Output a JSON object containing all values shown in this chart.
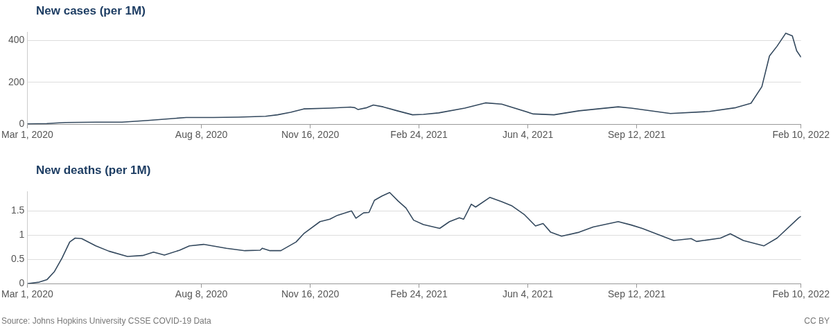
{
  "chart_data": [
    {
      "type": "line",
      "title": "New cases (per 1M)",
      "marker": "none",
      "grid": "y",
      "legend": false,
      "xlim": [
        "2020-03-01",
        "2022-02-10"
      ],
      "xticks": [
        {
          "value": "2020-03-01",
          "label": "Mar 1, 2020"
        },
        {
          "value": "2020-08-08",
          "label": "Aug 8, 2020"
        },
        {
          "value": "2020-11-16",
          "label": "Nov 16, 2020"
        },
        {
          "value": "2021-02-24",
          "label": "Feb 24, 2021"
        },
        {
          "value": "2021-06-04",
          "label": "Jun 4, 2021"
        },
        {
          "value": "2021-09-12",
          "label": "Sep 12, 2021"
        },
        {
          "value": "2022-02-10",
          "label": "Feb 10, 2022"
        }
      ],
      "ylim": [
        0,
        440
      ],
      "yticks": [
        0,
        200,
        400
      ],
      "x": [
        "2020-03-01",
        "2020-03-19",
        "2020-04-05",
        "2020-05-03",
        "2020-05-27",
        "2020-06-20",
        "2020-07-25",
        "2020-08-19",
        "2020-09-11",
        "2020-10-06",
        "2020-10-17",
        "2020-10-29",
        "2020-11-10",
        "2020-12-04",
        "2020-12-23",
        "2020-12-27",
        "2020-12-30",
        "2021-01-07",
        "2021-01-13",
        "2021-01-22",
        "2021-02-04",
        "2021-02-18",
        "2021-02-28",
        "2021-03-14",
        "2021-04-07",
        "2021-04-26",
        "2021-05-11",
        "2021-06-09",
        "2021-06-28",
        "2021-07-21",
        "2021-08-26",
        "2021-09-07",
        "2021-10-13",
        "2021-11-18",
        "2021-12-12",
        "2021-12-26",
        "2022-01-05",
        "2022-01-12",
        "2022-01-19",
        "2022-01-27",
        "2022-02-02",
        "2022-02-06",
        "2022-02-10"
      ],
      "series": [
        {
          "color": "#34495e",
          "values": [
            1,
            3,
            8,
            10,
            10,
            18,
            32,
            32,
            34,
            38,
            45,
            57,
            73,
            77,
            82,
            79,
            70,
            79,
            92,
            83,
            64,
            45,
            47,
            54,
            77,
            102,
            96,
            49,
            45,
            64,
            83,
            77,
            51,
            61,
            79,
            100,
            179,
            326,
            373,
            435,
            422,
            351,
            320
          ]
        }
      ]
    },
    {
      "type": "line",
      "title": "New deaths (per 1M)",
      "marker": "none",
      "grid": "y",
      "legend": false,
      "xlim": [
        "2020-03-01",
        "2022-02-10"
      ],
      "xticks": [
        {
          "value": "2020-03-01",
          "label": "Mar 1, 2020"
        },
        {
          "value": "2020-08-08",
          "label": "Aug 8, 2020"
        },
        {
          "value": "2020-11-16",
          "label": "Nov 16, 2020"
        },
        {
          "value": "2021-02-24",
          "label": "Feb 24, 2021"
        },
        {
          "value": "2021-06-04",
          "label": "Jun 4, 2021"
        },
        {
          "value": "2021-09-12",
          "label": "Sep 12, 2021"
        },
        {
          "value": "2022-02-10",
          "label": "Feb 10, 2022"
        }
      ],
      "ylim": [
        0,
        1.9
      ],
      "yticks": [
        0,
        0.5,
        1,
        1.5
      ],
      "x": [
        "2020-03-01",
        "2020-03-12",
        "2020-03-19",
        "2020-03-26",
        "2020-04-02",
        "2020-04-09",
        "2020-04-14",
        "2020-04-20",
        "2020-05-03",
        "2020-05-15",
        "2020-06-01",
        "2020-06-15",
        "2020-06-25",
        "2020-07-05",
        "2020-07-19",
        "2020-07-28",
        "2020-08-10",
        "2020-08-31",
        "2020-09-17",
        "2020-10-01",
        "2020-10-03",
        "2020-10-10",
        "2020-10-20",
        "2020-11-03",
        "2020-11-10",
        "2020-11-25",
        "2020-12-04",
        "2020-12-11",
        "2020-12-24",
        "2020-12-28",
        "2021-01-04",
        "2021-01-09",
        "2021-01-14",
        "2021-01-21",
        "2021-01-28",
        "2021-02-05",
        "2021-02-12",
        "2021-02-19",
        "2021-02-28",
        "2021-03-15",
        "2021-03-24",
        "2021-04-02",
        "2021-04-06",
        "2021-04-13",
        "2021-04-17",
        "2021-04-30",
        "2021-05-11",
        "2021-05-20",
        "2021-06-01",
        "2021-06-11",
        "2021-06-18",
        "2021-06-25",
        "2021-07-05",
        "2021-07-21",
        "2021-08-03",
        "2021-08-26",
        "2021-09-07",
        "2021-09-17",
        "2021-10-16",
        "2021-11-01",
        "2021-11-06",
        "2021-11-28",
        "2021-12-07",
        "2021-12-19",
        "2022-01-07",
        "2022-01-19",
        "2022-02-08",
        "2022-02-10"
      ],
      "series": [
        {
          "color": "#34495e",
          "values": [
            0,
            0.03,
            0.08,
            0.25,
            0.53,
            0.86,
            0.94,
            0.93,
            0.78,
            0.67,
            0.56,
            0.58,
            0.65,
            0.59,
            0.69,
            0.78,
            0.81,
            0.73,
            0.68,
            0.69,
            0.73,
            0.68,
            0.68,
            0.86,
            1.03,
            1.28,
            1.33,
            1.41,
            1.5,
            1.35,
            1.46,
            1.47,
            1.72,
            1.81,
            1.88,
            1.7,
            1.56,
            1.31,
            1.22,
            1.14,
            1.28,
            1.36,
            1.33,
            1.64,
            1.58,
            1.78,
            1.69,
            1.61,
            1.42,
            1.19,
            1.24,
            1.06,
            0.98,
            1.06,
            1.17,
            1.28,
            1.21,
            1.14,
            0.89,
            0.93,
            0.87,
            0.94,
            1.03,
            0.89,
            0.78,
            0.94,
            1.36,
            1.39
          ]
        }
      ],
      "annotations": [
        "Source: Johns Hopkins University CSSE COVID-19 Data",
        "CC BY"
      ]
    }
  ]
}
